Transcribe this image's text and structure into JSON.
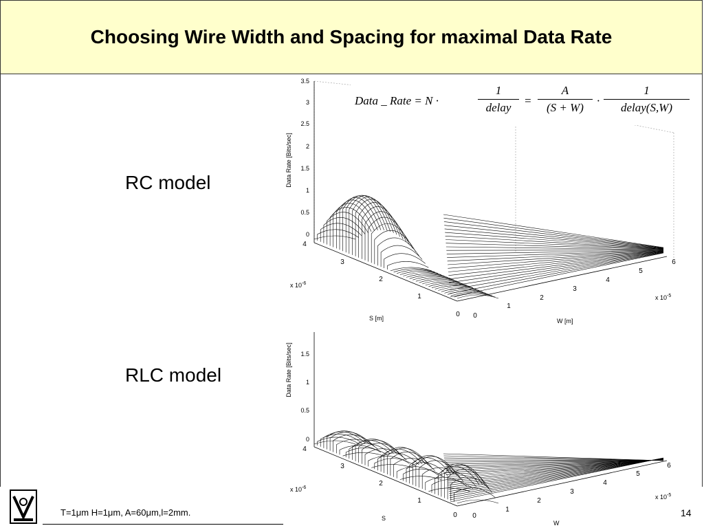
{
  "slide": {
    "title": "Choosing Wire Width and Spacing for maximal Data Rate",
    "page_number": "14",
    "footer_text": "T=1μm H=1μm, A=60μm,l=2mm."
  },
  "formula": {
    "lhs": "Data _ Rate = N ·",
    "frac1_num": "1",
    "frac1_den": "delay",
    "eq": "=",
    "frac2_num": "A",
    "frac2_den": "(S + W)",
    "dot": "·",
    "frac3_num": "1",
    "frac3_den": "delay(S,W)"
  },
  "models": {
    "rc": "RC model",
    "rlc": "RLC model"
  },
  "plots": {
    "rc": {
      "z_label": "Data Rate [Bits/sec]",
      "z_ticks": [
        "3.5",
        "3",
        "2.5",
        "2",
        "1.5",
        "1",
        "0.5",
        "0"
      ],
      "s_label": "S [m]",
      "s_ticks": [
        "4",
        "3",
        "2",
        "1",
        "0"
      ],
      "s_exp": "x 10",
      "s_exp_pow": "-6",
      "w_label": "W [m]",
      "w_ticks": [
        "0",
        "1",
        "2",
        "3",
        "4",
        "5",
        "6"
      ],
      "w_exp": "x 10",
      "w_exp_pow": "-5"
    },
    "rlc": {
      "z_label": "Data Rate [Bits/sec]",
      "z_ticks": [
        "1.5",
        "1",
        "0.5",
        "0"
      ],
      "s_label": "S",
      "s_ticks": [
        "4",
        "3",
        "2",
        "1",
        "0"
      ],
      "s_exp": "x 10",
      "s_exp_pow": "-6",
      "w_label": "W",
      "w_ticks": [
        "0",
        "1",
        "2",
        "3",
        "4",
        "5",
        "6"
      ],
      "w_exp": "x 10",
      "w_exp_pow": "-5"
    }
  }
}
